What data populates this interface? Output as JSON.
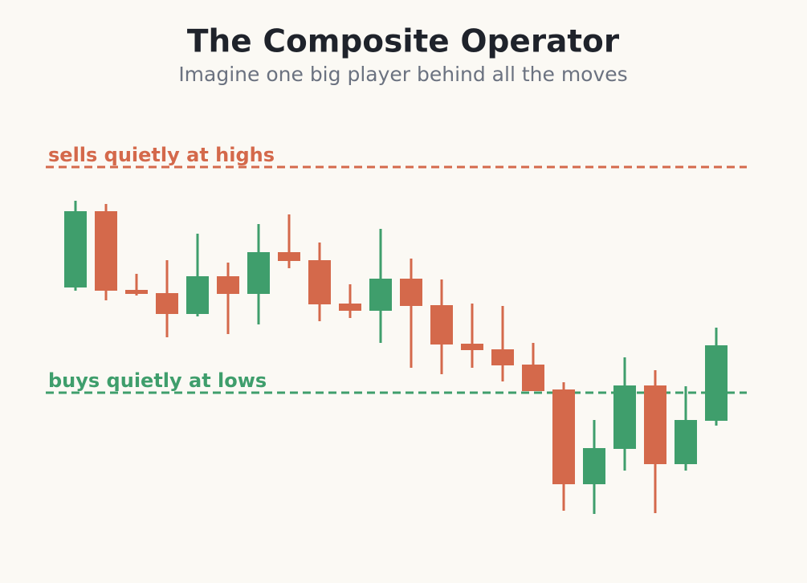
{
  "chart_data": {
    "type": "candlestick",
    "title": "The Composite Operator",
    "subtitle": "Imagine one big player behind all the moves",
    "open": [
      368,
      463,
      365,
      361,
      335,
      382,
      360,
      412,
      402,
      348,
      339,
      379,
      346,
      298,
      291,
      272,
      241,
      123,
      167,
      246,
      148,
      202
    ],
    "high": [
      476,
      472,
      385,
      402,
      435,
      399,
      447,
      459,
      424,
      372,
      441,
      404,
      378,
      348,
      345,
      299,
      250,
      203,
      281,
      265,
      245,
      318
    ],
    "low": [
      364,
      352,
      358,
      306,
      332,
      310,
      322,
      392,
      326,
      330,
      299,
      268,
      260,
      268,
      251,
      239,
      90,
      86,
      140,
      87,
      140,
      196
    ],
    "close": [
      463,
      364,
      360,
      335,
      382,
      360,
      412,
      401,
      347,
      339,
      379,
      345,
      297,
      290,
      271,
      239,
      123,
      168,
      246,
      148,
      203,
      296
    ],
    "up_color": "#3f9e6c",
    "down_color": "#d4694b",
    "ylim": [
      0,
      726
    ],
    "annotations": [
      {
        "text": "sells quietly at highs",
        "value": 518,
        "color": "#d4694b"
      },
      {
        "text": "buys quietly at lows",
        "value": 237,
        "color": "#3f9e6c"
      }
    ]
  }
}
